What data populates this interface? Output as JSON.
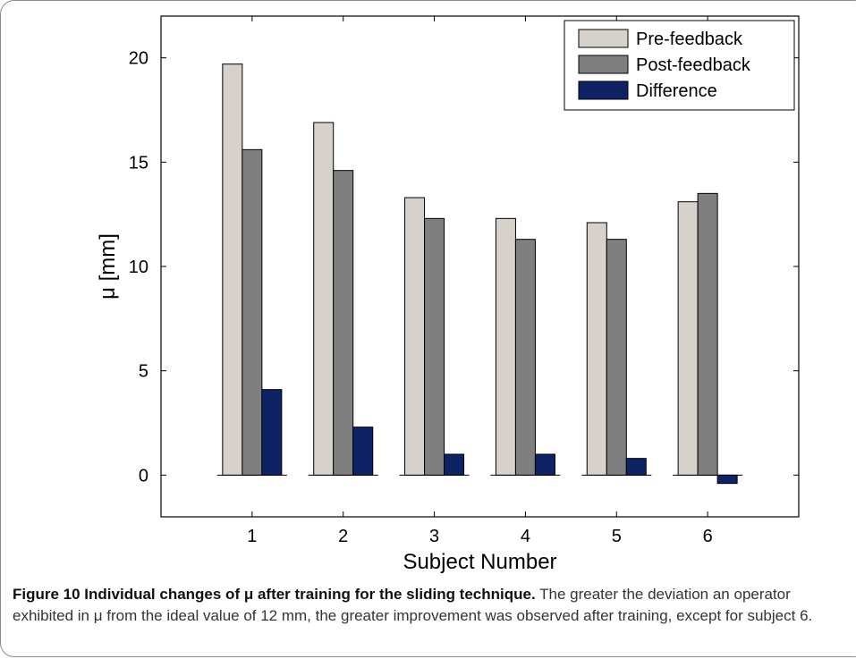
{
  "chart_data": {
    "type": "bar",
    "categories": [
      "1",
      "2",
      "3",
      "4",
      "5",
      "6"
    ],
    "series": [
      {
        "name": "Pre-feedback",
        "values": [
          19.7,
          16.9,
          13.3,
          12.3,
          12.1,
          13.1
        ],
        "color": "#d6d2cb"
      },
      {
        "name": "Post-feedback",
        "values": [
          15.6,
          14.6,
          12.3,
          11.3,
          11.3,
          13.5
        ],
        "color": "#7f7f7f"
      },
      {
        "name": "Difference",
        "values": [
          4.1,
          2.3,
          1.0,
          1.0,
          0.8,
          -0.4
        ],
        "color": "#0e2266"
      }
    ],
    "xlabel": "Subject Number",
    "ylabel": "μ [mm]",
    "ylim": [
      -2,
      22
    ],
    "yticks": [
      0,
      5,
      10,
      15,
      20
    ],
    "legend": "top-right",
    "grid": false
  },
  "caption": {
    "title": "Figure 10 Individual changes of μ after training for the sliding technique.",
    "text": " The greater the deviation an operator exhibited in μ from the ideal value of 12 mm, the greater improvement was observed after training, except for subject 6."
  }
}
